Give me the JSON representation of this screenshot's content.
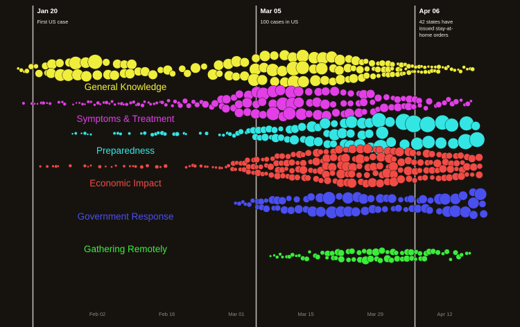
{
  "chart_data": {
    "type": "scatter",
    "title": "",
    "xlabel": "",
    "ylabel": "",
    "x_axis": {
      "type": "date",
      "range": [
        "2020-01-17",
        "2020-04-22"
      ],
      "ticks": [
        {
          "date": "2020-02-02",
          "label": "Feb 02"
        },
        {
          "date": "2020-02-16",
          "label": "Feb 16"
        },
        {
          "date": "2020-03-01",
          "label": "Mar 01"
        },
        {
          "date": "2020-03-15",
          "label": "Mar 15"
        },
        {
          "date": "2020-03-29",
          "label": "Mar 29"
        },
        {
          "date": "2020-04-12",
          "label": "Apr 12"
        }
      ]
    },
    "events": [
      {
        "date": "2020-01-20",
        "label": "Jan 20",
        "description": [
          "First US case"
        ]
      },
      {
        "date": "2020-03-05",
        "label": "Mar 05",
        "description": [
          "100 cases in US"
        ]
      },
      {
        "date": "2020-04-06",
        "label": "Apr 06",
        "description": [
          "42 states have",
          "issued stay-at-",
          "home orders"
        ]
      }
    ],
    "series": [
      {
        "name": "General Knowledge",
        "color": "#f0ee3c",
        "start": "2020-01-17",
        "end": "2020-04-18",
        "profile": [
          [
            0,
            3
          ],
          [
            4,
            8
          ],
          [
            9,
            18
          ],
          [
            15,
            22
          ],
          [
            21,
            14
          ],
          [
            27,
            8
          ],
          [
            33,
            7
          ],
          [
            40,
            14
          ],
          [
            49,
            26
          ],
          [
            56,
            28
          ],
          [
            63,
            24
          ],
          [
            70,
            16
          ],
          [
            78,
            9
          ],
          [
            86,
            5
          ],
          [
            91,
            4
          ]
        ],
        "size_profile": [
          [
            0,
            2
          ],
          [
            8,
            7
          ],
          [
            15,
            9
          ],
          [
            22,
            6
          ],
          [
            32,
            6
          ],
          [
            48,
            8
          ],
          [
            56,
            9
          ],
          [
            66,
            6
          ],
          [
            78,
            3
          ],
          [
            91,
            2.5
          ]
        ]
      },
      {
        "name": "Symptoms & Treatment",
        "color": "#e23fe6",
        "start": "2020-01-18",
        "end": "2020-04-18",
        "profile": [
          [
            0,
            1
          ],
          [
            10,
            2
          ],
          [
            22,
            3
          ],
          [
            32,
            4
          ],
          [
            38,
            7
          ],
          [
            43,
            18
          ],
          [
            52,
            26
          ],
          [
            62,
            24
          ],
          [
            70,
            18
          ],
          [
            78,
            10
          ],
          [
            85,
            6
          ],
          [
            90,
            4
          ]
        ],
        "size_profile": [
          [
            0,
            2
          ],
          [
            30,
            2.5
          ],
          [
            40,
            5
          ],
          [
            50,
            8
          ],
          [
            62,
            7
          ],
          [
            75,
            5
          ],
          [
            90,
            3
          ]
        ]
      },
      {
        "name": "Preparedness",
        "color": "#33e6e4",
        "start": "2020-01-28",
        "end": "2020-04-20",
        "profile": [
          [
            0,
            1
          ],
          [
            30,
            2
          ],
          [
            34,
            6
          ],
          [
            42,
            14
          ],
          [
            52,
            22
          ],
          [
            62,
            28
          ],
          [
            68,
            30
          ],
          [
            74,
            30
          ],
          [
            80,
            24
          ],
          [
            86,
            18
          ],
          [
            92,
            12
          ],
          [
            96,
            10
          ]
        ],
        "size_profile": [
          [
            0,
            2
          ],
          [
            32,
            3
          ],
          [
            44,
            6
          ],
          [
            58,
            8
          ],
          [
            68,
            11
          ],
          [
            78,
            10
          ],
          [
            88,
            8
          ],
          [
            96,
            6
          ]
        ]
      },
      {
        "name": "Economic Impact",
        "color": "#f24b45",
        "start": "2020-01-21",
        "end": "2020-04-19",
        "profile": [
          [
            0,
            1
          ],
          [
            20,
            1
          ],
          [
            36,
            2
          ],
          [
            44,
            14
          ],
          [
            52,
            22
          ],
          [
            60,
            28
          ],
          [
            66,
            30
          ],
          [
            72,
            28
          ],
          [
            80,
            22
          ],
          [
            88,
            18
          ],
          [
            94,
            14
          ]
        ],
        "size_profile": [
          [
            0,
            2
          ],
          [
            36,
            2.5
          ],
          [
            44,
            4
          ],
          [
            55,
            5
          ],
          [
            66,
            6
          ],
          [
            80,
            5
          ],
          [
            94,
            4.5
          ]
        ]
      },
      {
        "name": "Government Response",
        "color": "#4a4ff0",
        "start": "2020-03-01",
        "end": "2020-04-20",
        "profile": [
          [
            0,
            2
          ],
          [
            6,
            10
          ],
          [
            16,
            20
          ],
          [
            24,
            20
          ],
          [
            32,
            14
          ],
          [
            38,
            12
          ],
          [
            42,
            18
          ],
          [
            47,
            24
          ],
          [
            50,
            22
          ]
        ],
        "size_profile": [
          [
            0,
            2.5
          ],
          [
            8,
            5
          ],
          [
            18,
            8
          ],
          [
            28,
            6
          ],
          [
            36,
            5
          ],
          [
            44,
            8
          ],
          [
            50,
            7
          ]
        ]
      },
      {
        "name": "Gathering Remotely",
        "color": "#3bec3b",
        "start": "2020-03-08",
        "end": "2020-04-17",
        "profile": [
          [
            0,
            2
          ],
          [
            6,
            4
          ],
          [
            14,
            10
          ],
          [
            22,
            12
          ],
          [
            30,
            8
          ],
          [
            36,
            6
          ],
          [
            40,
            4
          ]
        ],
        "size_profile": [
          [
            0,
            2
          ],
          [
            8,
            3.5
          ],
          [
            18,
            5
          ],
          [
            28,
            4
          ],
          [
            40,
            3
          ]
        ]
      }
    ]
  }
}
